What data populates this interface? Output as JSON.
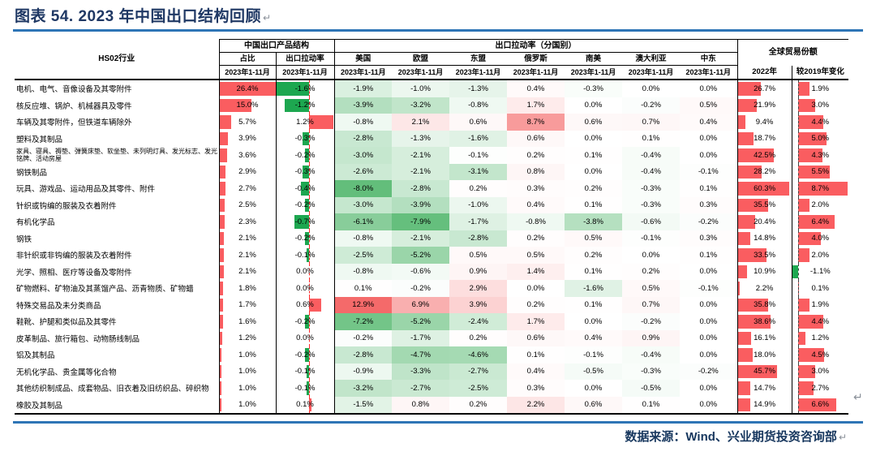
{
  "title": "图表 54. 2023 年中国出口结构回顾",
  "paragraph_mark": "↵",
  "footer": {
    "source": "数据来源：Wind、兴业期货投资咨询部"
  },
  "colors": {
    "title_text": "#1F3864",
    "rule_blue": "#2E75B6",
    "footer_text": "#17375E",
    "databar_red": "#FA5D60",
    "databar_green": "#1DA750",
    "heat_red_max": "#F46A6A",
    "heat_green_max": "#63BE7B",
    "axis_red_dashed": "#FF2A2A",
    "axis_black_dashed": "#404040"
  },
  "chart_data": {
    "type": "table",
    "title": "图表 54. 2023 年中国出口结构回顾",
    "unit": "%",
    "row_header": "HS02行业",
    "col_groups": [
      "中国出口产品结构",
      "出口拉动率（分国别）",
      "全球贸易份额"
    ],
    "columns": [
      "占比",
      "出口拉动率",
      "美国",
      "欧盟",
      "东盟",
      "俄罗斯",
      "南美",
      "澳大利亚",
      "中东",
      "2022年",
      "较2019年变化"
    ],
    "period_label": "2023年1-11月",
    "rows": [
      {
        "industry": "电机、电气、音像设备及其零附件",
        "values": [
          26.4,
          -1.6,
          -1.9,
          -1.0,
          -1.3,
          0.4,
          -0.3,
          0.0,
          0.0,
          26.7,
          1.9
        ]
      },
      {
        "industry": "核反应堆、锅炉、机械器具及零件",
        "values": [
          15.0,
          -1.2,
          -3.9,
          -3.2,
          -0.8,
          1.7,
          0.0,
          -0.2,
          0.5,
          21.9,
          3.0
        ]
      },
      {
        "industry": "车辆及其零附件，但铁道车辆除外",
        "values": [
          5.7,
          1.2,
          -0.8,
          2.1,
          0.6,
          8.7,
          0.6,
          0.7,
          0.4,
          9.4,
          4.4
        ]
      },
      {
        "industry": "塑料及其制品",
        "values": [
          3.9,
          -0.3,
          -2.8,
          -1.3,
          -1.6,
          0.6,
          0.0,
          0.1,
          0.0,
          18.7,
          5.0
        ]
      },
      {
        "industry": "家具、寝具、褥垫、弹簧床垫、软坐垫、未列明灯具、发光标志、发光铭牌、活动房屋",
        "values": [
          3.6,
          -0.2,
          -3.0,
          -2.1,
          -0.1,
          0.2,
          0.1,
          -0.4,
          0.0,
          42.5,
          4.3
        ]
      },
      {
        "industry": "钢铁制品",
        "values": [
          2.9,
          -0.3,
          -2.6,
          -2.1,
          -3.1,
          0.8,
          0.0,
          -0.4,
          -0.1,
          28.2,
          5.5
        ]
      },
      {
        "industry": "玩具、游戏品、运动用品及其零件、附件",
        "values": [
          2.7,
          -0.4,
          -8.0,
          -2.8,
          0.2,
          0.3,
          0.2,
          -0.3,
          0.1,
          60.3,
          8.7
        ]
      },
      {
        "industry": "针织或钩编的服装及衣着附件",
        "values": [
          2.5,
          -0.2,
          -3.0,
          -3.9,
          -1.0,
          0.4,
          0.1,
          -0.3,
          0.3,
          35.5,
          2.0
        ]
      },
      {
        "industry": "有机化学品",
        "values": [
          2.3,
          -0.7,
          -6.1,
          -7.9,
          -1.7,
          -0.8,
          -3.8,
          -0.6,
          -0.2,
          20.4,
          6.4
        ]
      },
      {
        "industry": "钢铁",
        "values": [
          2.1,
          -0.2,
          -0.8,
          -2.1,
          -2.8,
          0.2,
          0.5,
          -0.1,
          0.3,
          14.8,
          4.0
        ]
      },
      {
        "industry": "非针织或非钩编的服装及衣着附件",
        "values": [
          2.1,
          -0.1,
          -2.5,
          -5.2,
          0.5,
          0.5,
          0.2,
          0.0,
          0.1,
          33.5,
          2.0
        ]
      },
      {
        "industry": "光学、照相、医疗等设备及零附件",
        "values": [
          2.1,
          0.0,
          -0.8,
          -0.6,
          0.9,
          1.4,
          0.1,
          0.2,
          0.0,
          10.9,
          -1.1
        ]
      },
      {
        "industry": "矿物燃料、矿物油及其蒸馏产品、沥青物质、矿物蜡",
        "values": [
          1.8,
          0.0,
          0.1,
          -0.2,
          2.9,
          0.0,
          -1.6,
          0.5,
          -0.1,
          2.2,
          0.1
        ]
      },
      {
        "industry": "特殊交易品及未分类商品",
        "values": [
          1.7,
          0.6,
          12.9,
          6.9,
          3.9,
          0.2,
          0.1,
          0.7,
          0.0,
          35.8,
          1.9
        ]
      },
      {
        "industry": "鞋靴、护腿和类似品及其零件",
        "values": [
          1.6,
          -0.2,
          -7.2,
          -5.2,
          -2.4,
          1.7,
          0.0,
          -0.2,
          0.0,
          38.6,
          4.4
        ]
      },
      {
        "industry": "皮革制品、旅行箱包、动物肠线制品",
        "values": [
          1.2,
          0.0,
          -0.2,
          -1.7,
          0.2,
          0.6,
          0.4,
          0.9,
          0.0,
          16.1,
          1.2
        ]
      },
      {
        "industry": "铝及其制品",
        "values": [
          1.0,
          -0.2,
          -2.8,
          -4.7,
          -4.6,
          0.1,
          -0.1,
          -0.4,
          0.0,
          18.0,
          4.5
        ]
      },
      {
        "industry": "无机化学品、贵金属等化合物",
        "values": [
          1.0,
          -0.1,
          -0.9,
          -3.3,
          -2.7,
          0.4,
          -0.5,
          -0.3,
          -0.2,
          45.7,
          3.0
        ]
      },
      {
        "industry": "其他纺织制成品、成套物品、旧衣着及旧纺织品、碎织物",
        "values": [
          1.0,
          -0.1,
          -3.2,
          -2.7,
          -2.5,
          0.3,
          0.0,
          -0.5,
          0.0,
          14.7,
          2.7
        ]
      },
      {
        "industry": "橡胶及其制品",
        "values": [
          1.0,
          0.1,
          -1.5,
          0.8,
          0.2,
          2.2,
          0.6,
          0.1,
          0.0,
          14.9,
          6.6
        ]
      }
    ]
  }
}
